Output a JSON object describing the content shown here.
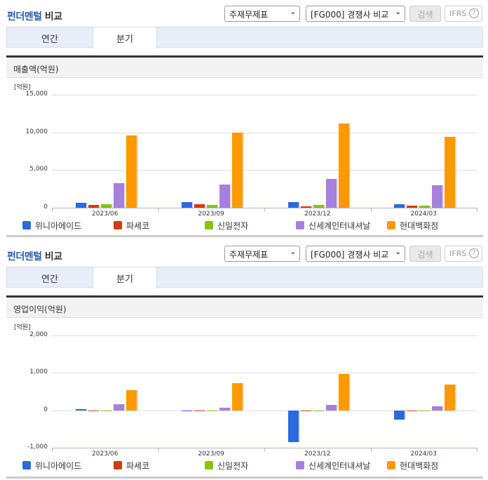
{
  "panels": [
    {
      "title_accent": "펀더멘털",
      "title_rest": " 비교",
      "select_statement": "주재무제표",
      "select_group": "[FG000] 경쟁사 비교",
      "search_button": "검색",
      "ifrs_button": "IFRS",
      "help_icon": "?",
      "tabs": [
        {
          "label": "연간",
          "active": false
        },
        {
          "label": "분기",
          "active": true
        }
      ],
      "metric_title": "매출액(억원)",
      "unit_label": "[억원]"
    },
    {
      "title_accent": "펀더멘털",
      "title_rest": " 비교",
      "select_statement": "주재무제표",
      "select_group": "[FG000] 경쟁사 비교",
      "search_button": "검색",
      "ifrs_button": "IFRS",
      "help_icon": "?",
      "tabs": [
        {
          "label": "연간",
          "active": false
        },
        {
          "label": "분기",
          "active": true
        }
      ],
      "metric_title": "영업이익(억원)",
      "unit_label": "[억원]"
    }
  ],
  "legend": [
    {
      "name": "위니아에이드",
      "color": "#2a6ae0"
    },
    {
      "name": "파세코",
      "color": "#d63a12"
    },
    {
      "name": "신일전자",
      "color": "#84c414"
    },
    {
      "name": "신세계인터내셔날",
      "color": "#a77fdc"
    },
    {
      "name": "현대백화점",
      "color": "#ff9900"
    }
  ],
  "chart_data": [
    {
      "type": "bar",
      "title": "매출액(억원)",
      "xlabel": "",
      "ylabel": "[억원]",
      "ylim": [
        0,
        15000
      ],
      "yticks": [
        "0",
        "5,000",
        "10,000",
        "15,000"
      ],
      "grid": true,
      "legend_position": "bottom",
      "categories": [
        "2023/06",
        "2023/09",
        "2023/12",
        "2024/03"
      ],
      "series": [
        {
          "name": "위니아에이드",
          "values": [
            650,
            750,
            700,
            450
          ]
        },
        {
          "name": "파세코",
          "values": [
            400,
            480,
            200,
            250
          ]
        },
        {
          "name": "신일전자",
          "values": [
            480,
            380,
            400,
            250
          ]
        },
        {
          "name": "신세계인터내셔날",
          "values": [
            3300,
            3100,
            3850,
            3000
          ]
        },
        {
          "name": "현대백화점",
          "values": [
            9600,
            10000,
            11200,
            9450
          ]
        }
      ]
    },
    {
      "type": "bar",
      "title": "영업이익(억원)",
      "xlabel": "",
      "ylabel": "[억원]",
      "ylim": [
        -1000,
        2000
      ],
      "yticks": [
        "-1,000",
        "0",
        "1,000",
        "2,000"
      ],
      "grid": true,
      "legend_position": "bottom",
      "categories": [
        "2023/06",
        "2023/09",
        "2023/12",
        "2024/03"
      ],
      "series": [
        {
          "name": "위니아에이드",
          "values": [
            30,
            0,
            -850,
            -250
          ]
        },
        {
          "name": "파세코",
          "values": [
            -10,
            -15,
            0,
            -20
          ]
        },
        {
          "name": "신일전자",
          "values": [
            -10,
            -15,
            0,
            0
          ]
        },
        {
          "name": "신세계인터내셔날",
          "values": [
            170,
            60,
            140,
            100
          ]
        },
        {
          "name": "현대백화점",
          "values": [
            540,
            730,
            960,
            690
          ]
        }
      ]
    }
  ]
}
